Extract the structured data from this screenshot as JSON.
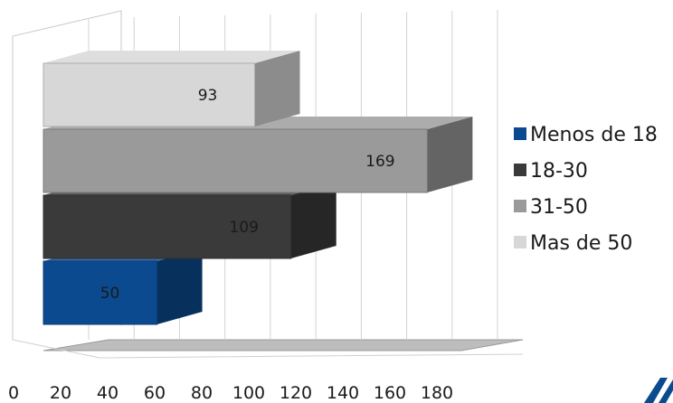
{
  "chart_data": {
    "type": "bar",
    "orientation": "horizontal",
    "style": "3d",
    "categories": [
      "Menos de 18",
      "18-30",
      "31-50",
      "Mas de 50"
    ],
    "series": [
      {
        "name": "Menos de 18",
        "value": 50,
        "color": "#0c4a8f"
      },
      {
        "name": "18-30",
        "value": 109,
        "color": "#3a3a3a"
      },
      {
        "name": "31-50",
        "value": 169,
        "color": "#9a9a9a"
      },
      {
        "name": "Mas de 50",
        "value": 93,
        "color": "#d7d7d7"
      }
    ],
    "xlim": [
      0,
      180
    ],
    "x_ticks": [
      "0",
      "20",
      "40",
      "60",
      "80",
      "100",
      "120",
      "140",
      "160",
      "180"
    ],
    "grid": true,
    "legend_position": "right"
  }
}
